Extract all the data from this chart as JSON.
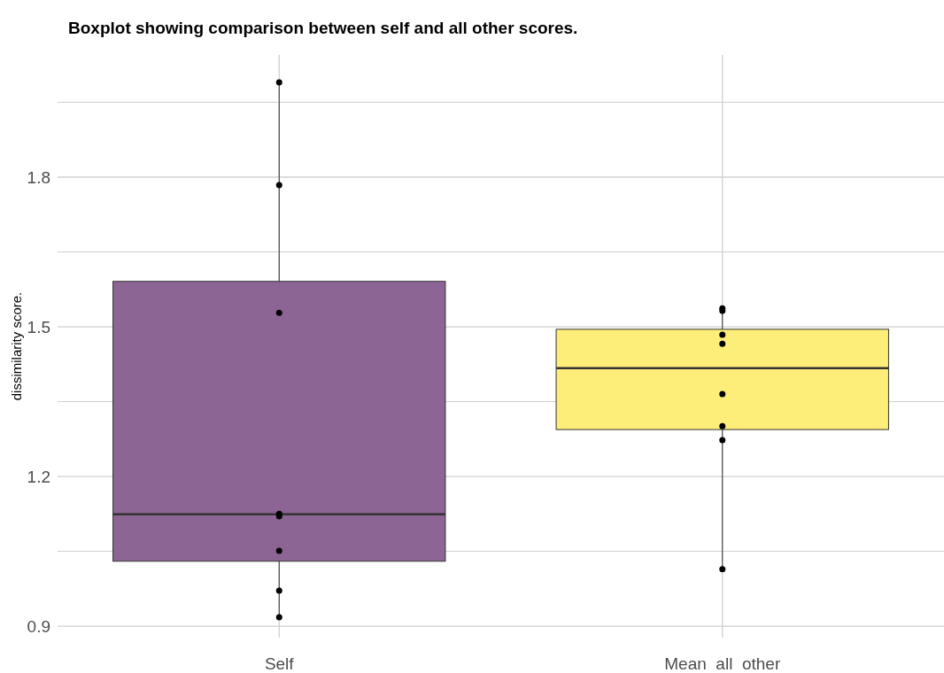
{
  "chart_data": {
    "type": "box",
    "title": "Boxplot showing comparison between self and all other scores.",
    "ylabel": "dissimilarity score.",
    "categories": [
      "Self",
      "Mean  all  other"
    ],
    "colors": [
      "#8d6594",
      "#fdee79"
    ],
    "boxes": [
      {
        "low": 0.918,
        "q1": 1.03,
        "median": 1.124,
        "q3": 1.591,
        "high": 1.99
      },
      {
        "low": 1.014,
        "q1": 1.294,
        "median": 1.417,
        "q3": 1.495,
        "high": 1.537
      }
    ],
    "series": [
      {
        "type": "scatter",
        "color": "#000000",
        "x": [
          "Self",
          "Self",
          "Self",
          "Self",
          "Self",
          "Self",
          "Self",
          "Self",
          "Mean  all  other",
          "Mean  all  other",
          "Mean  all  other",
          "Mean  all  other",
          "Mean  all  other",
          "Mean  all  other",
          "Mean  all  other",
          "Mean  all  other"
        ],
        "values": [
          1.99,
          1.784,
          1.528,
          1.125,
          1.12,
          1.051,
          0.971,
          0.918,
          1.484,
          1.466,
          1.532,
          1.537,
          1.365,
          1.301,
          1.273,
          1.014
        ]
      }
    ],
    "ylim": [
      0.877,
      2.045
    ],
    "yticks": [
      {
        "value": 0.9,
        "label": "0.9"
      },
      {
        "value": 1.05,
        "label": null
      },
      {
        "value": 1.2,
        "label": "1.2"
      },
      {
        "value": 1.35,
        "label": null
      },
      {
        "value": 1.5,
        "label": "1.5"
      },
      {
        "value": 1.65,
        "label": null
      },
      {
        "value": 1.8,
        "label": "1.8"
      },
      {
        "value": 1.95,
        "label": null
      }
    ],
    "grid": true,
    "marker": "circle"
  }
}
